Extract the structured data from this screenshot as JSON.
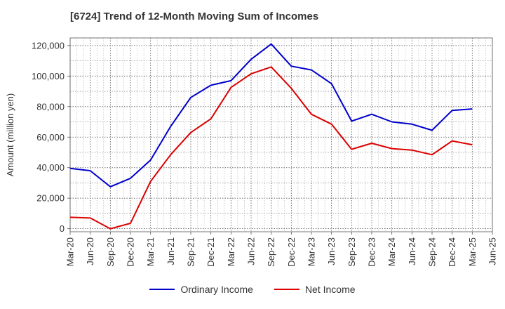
{
  "title": "[6724]  Trend of 12-Month Moving Sum of Incomes",
  "chart_data": {
    "type": "line",
    "title": "[6724]  Trend of 12-Month Moving Sum of Incomes",
    "xlabel": "",
    "ylabel": "Amount (million yen)",
    "ylim": [
      -2000,
      125000
    ],
    "yticks": [
      0,
      20000,
      40000,
      60000,
      80000,
      100000,
      120000
    ],
    "ytick_labels": [
      "0",
      "20,000",
      "40,000",
      "60,000",
      "80,000",
      "100,000",
      "120,000"
    ],
    "categories": [
      "Mar-20",
      "Jun-20",
      "Sep-20",
      "Dec-20",
      "Mar-21",
      "Jun-21",
      "Sep-21",
      "Dec-21",
      "Mar-22",
      "Jun-22",
      "Sep-22",
      "Dec-22",
      "Mar-23",
      "Jun-23",
      "Sep-23",
      "Dec-23",
      "Mar-24",
      "Jun-24",
      "Sep-24",
      "Dec-24",
      "Mar-25",
      "Jun-25"
    ],
    "grid": true,
    "legend_position": "bottom",
    "series": [
      {
        "name": "Ordinary Income",
        "color": "#0000cc",
        "values": [
          39500,
          38000,
          27500,
          33000,
          45000,
          67000,
          86000,
          94000,
          97000,
          111000,
          121000,
          106500,
          104000,
          95000,
          70500,
          75000,
          70000,
          68500,
          64500,
          77500,
          78500,
          null
        ]
      },
      {
        "name": "Net Income",
        "color": "#dd0000",
        "values": [
          7500,
          7000,
          0,
          3500,
          31000,
          48500,
          63000,
          72000,
          92500,
          101500,
          106000,
          92000,
          75000,
          68500,
          52000,
          56000,
          52500,
          51500,
          48500,
          57500,
          55000,
          null
        ]
      }
    ]
  }
}
